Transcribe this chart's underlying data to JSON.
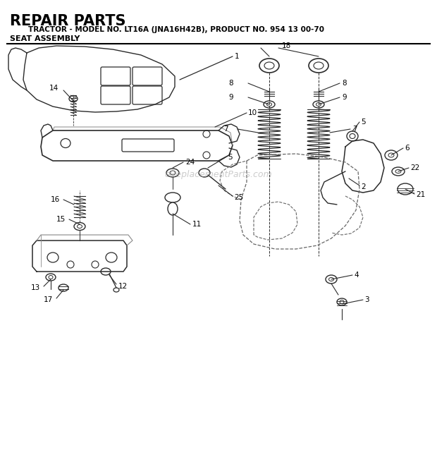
{
  "title_line1": "REPAIR PARTS",
  "title_line2": "     TRACTOR - MODEL NO. LT16A (JNA16H42B), PRODUCT NO. 954 13 00-70",
  "title_line3": "SEAT ASSEMBLY",
  "watermark": "eReplacementParts.com",
  "bg_color": "#ffffff",
  "line_color": "#2a2a2a",
  "dashed_color": "#666666",
  "label_color": "#000000"
}
